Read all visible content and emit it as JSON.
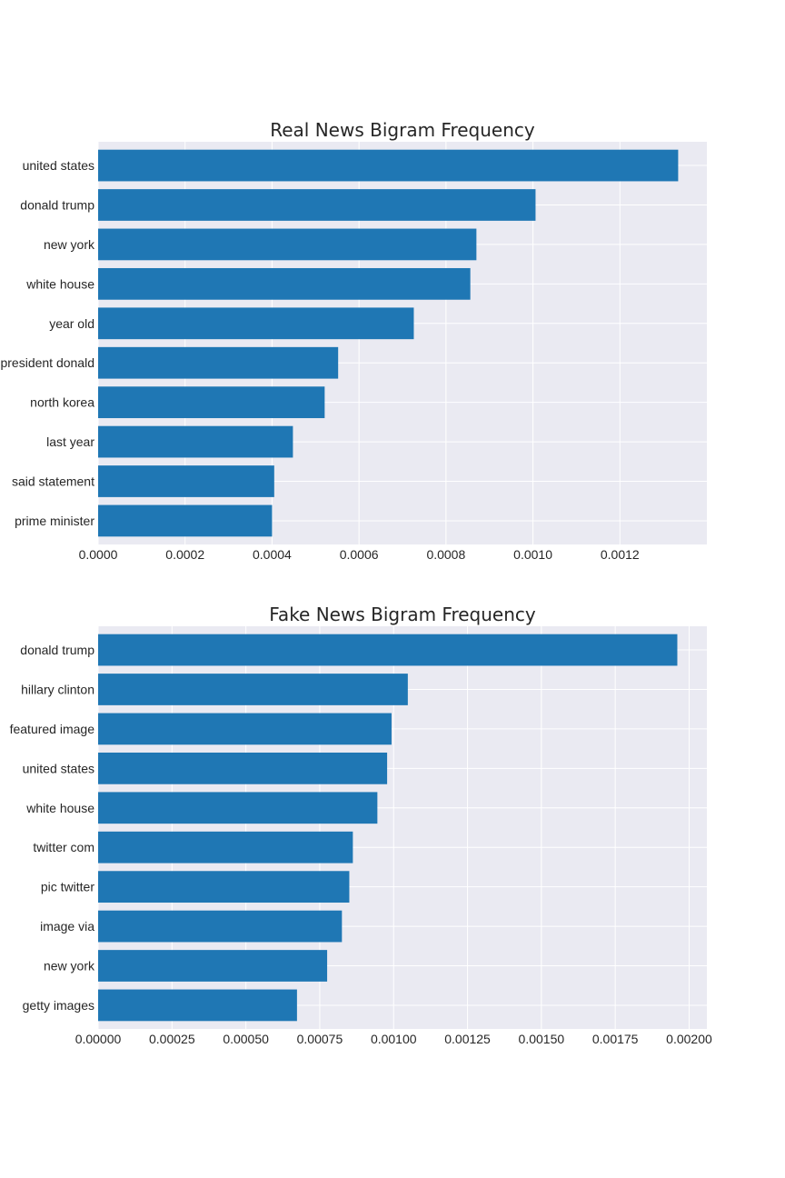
{
  "chart_data": [
    {
      "type": "bar",
      "orientation": "horizontal",
      "title": "Real News Bigram Frequency",
      "xlabel": "",
      "ylabel": "",
      "categories": [
        "united states",
        "donald trump",
        "new york",
        "white house",
        "year old",
        "president donald",
        "north korea",
        "last year",
        "said statement",
        "prime minister"
      ],
      "values": [
        0.001334,
        0.001006,
        0.00087,
        0.000856,
        0.000726,
        0.000552,
        0.000521,
        0.000448,
        0.000405,
        0.0004
      ],
      "xlim": [
        0,
        0.0014
      ],
      "xticks": [
        "0.0000",
        "0.0002",
        "0.0004",
        "0.0006",
        "0.0008",
        "0.0010",
        "0.0012"
      ],
      "xtick_values": [
        0,
        0.0002,
        0.0004,
        0.0006,
        0.0008,
        0.001,
        0.0012
      ],
      "grid": true,
      "bar_color": "#1f77b4",
      "background": "#eaeaf2"
    },
    {
      "type": "bar",
      "orientation": "horizontal",
      "title": "Fake News Bigram Frequency",
      "xlabel": "",
      "ylabel": "",
      "categories": [
        "donald trump",
        "hillary clinton",
        "featured image",
        "united states",
        "white house",
        "twitter com",
        "pic twitter",
        "image via",
        "new york",
        "getty images"
      ],
      "values": [
        0.00196,
        0.001048,
        0.000993,
        0.000978,
        0.000945,
        0.000862,
        0.00085,
        0.000825,
        0.000775,
        0.000673
      ],
      "xlim": [
        0,
        0.00206
      ],
      "xticks": [
        "0.00000",
        "0.00025",
        "0.00050",
        "0.00075",
        "0.00100",
        "0.00125",
        "0.00150",
        "0.00175",
        "0.00200"
      ],
      "xtick_values": [
        0,
        0.00025,
        0.0005,
        0.00075,
        0.001,
        0.00125,
        0.0015,
        0.00175,
        0.002
      ],
      "grid": true,
      "bar_color": "#1f77b4",
      "background": "#eaeaf2"
    }
  ]
}
